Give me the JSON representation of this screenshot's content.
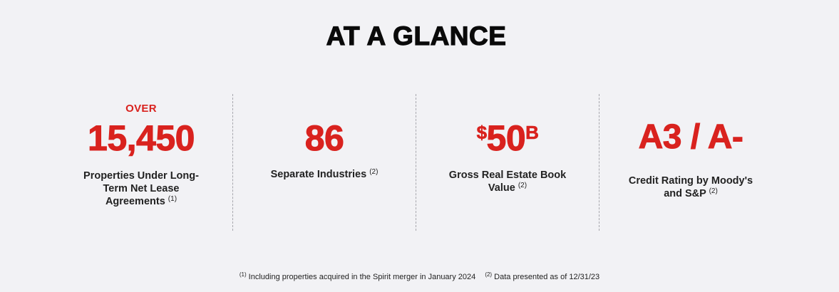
{
  "heading": "AT A GLANCE",
  "stats": [
    {
      "prefix": "OVER",
      "value": "15,450",
      "description": "Properties Under Long-Term Net Lease Agreements",
      "note": "(1)"
    },
    {
      "value": "86",
      "description": "Separate Industries",
      "note": "(2)"
    },
    {
      "value_prefix": "$",
      "value": "50",
      "value_suffix": "B",
      "description": "Gross Real Estate Book Value",
      "note": "(2)"
    },
    {
      "value": "A3 / A-",
      "description": "Credit Rating by Moody's and S&P",
      "note": "(2)"
    }
  ],
  "footnotes": [
    {
      "marker": "(1)",
      "text": "Including properties acquired in the Spirit merger in January 2024"
    },
    {
      "marker": "(2)",
      "text": "Data presented as of 12/31/23"
    }
  ],
  "colors": {
    "accent": "#d9221e",
    "background": "#f2f2f5",
    "text": "#222222",
    "divider": "#a7a7ad"
  }
}
